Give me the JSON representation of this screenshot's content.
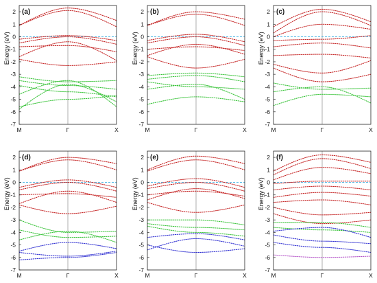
{
  "figure": {
    "colors": {
      "red": "#c62828",
      "green": "#3cc43c",
      "blue": "#3232d2",
      "purple": "#b455c8",
      "fermi": "#29a8e0",
      "gamma_line": "#9a9a9a"
    },
    "panels": [
      {
        "label": "(a)",
        "ylabel": "Energy (eV)",
        "xticks": [
          "M",
          "Γ",
          "X"
        ],
        "yticks": [
          "2",
          "1",
          "0",
          "-1",
          "-2",
          "-3",
          "-4",
          "-5",
          "-6",
          "-7"
        ],
        "chart_data": {
          "type": "line",
          "ylim": [
            -7,
            2.5
          ],
          "x_points": [
            "M",
            "Γ",
            "X"
          ],
          "fermi_level": 0,
          "series": [
            {
              "color": "red",
              "values": [
                0.9,
                2.3,
                1.3
              ]
            },
            {
              "color": "red",
              "values": [
                0.9,
                2.1,
                0.8
              ]
            },
            {
              "color": "red",
              "values": [
                -0.2,
                0.1,
                -0.3
              ]
            },
            {
              "color": "red",
              "values": [
                -0.5,
                0.0,
                -0.6
              ]
            },
            {
              "color": "red",
              "values": [
                -0.8,
                -0.7,
                -1.2
              ]
            },
            {
              "color": "red",
              "values": [
                -1.6,
                -0.4,
                -1.9
              ]
            },
            {
              "color": "red",
              "values": [
                -1.8,
                -2.3,
                -2.0
              ]
            },
            {
              "color": "green",
              "values": [
                -3.2,
                -3.6,
                -3.5
              ]
            },
            {
              "color": "green",
              "values": [
                -3.5,
                -3.9,
                -4.2
              ]
            },
            {
              "color": "green",
              "values": [
                -3.9,
                -4.4,
                -4.8
              ]
            },
            {
              "color": "green",
              "values": [
                -4.6,
                -3.5,
                -5.6
              ]
            },
            {
              "color": "green",
              "values": [
                -5.6,
                -5.0,
                -4.7
              ]
            },
            {
              "color": "green",
              "values": [
                -5.8,
                -3.8,
                -5.2
              ]
            }
          ]
        }
      },
      {
        "label": "(b)",
        "ylabel": "Energy (eV)",
        "xticks": [
          "M",
          "Γ",
          "X"
        ],
        "yticks": [
          "2",
          "1",
          "0",
          "-1",
          "-2",
          "-3",
          "-4",
          "-5",
          "-6",
          "-7"
        ],
        "chart_data": {
          "type": "line",
          "ylim": [
            -7,
            2.5
          ],
          "x_points": [
            "M",
            "Γ",
            "X"
          ],
          "fermi_level": 0,
          "series": [
            {
              "color": "red",
              "values": [
                0.9,
                2.0,
                1.4
              ]
            },
            {
              "color": "red",
              "values": [
                0.9,
                1.8,
                0.9
              ]
            },
            {
              "color": "red",
              "values": [
                -0.3,
                0.2,
                -0.4
              ]
            },
            {
              "color": "red",
              "values": [
                -0.5,
                0.0,
                -0.7
              ]
            },
            {
              "color": "red",
              "values": [
                -1.0,
                -0.8,
                -1.1
              ]
            },
            {
              "color": "red",
              "values": [
                -1.5,
                -0.6,
                -1.4
              ]
            },
            {
              "color": "red",
              "values": [
                -1.6,
                -2.5,
                -1.8
              ]
            },
            {
              "color": "green",
              "values": [
                -3.1,
                -2.9,
                -3.2
              ]
            },
            {
              "color": "green",
              "values": [
                -3.4,
                -3.1,
                -3.6
              ]
            },
            {
              "color": "green",
              "values": [
                -3.6,
                -4.0,
                -4.2
              ]
            },
            {
              "color": "green",
              "values": [
                -5.4,
                -4.8,
                -5.2
              ]
            },
            {
              "color": "green",
              "values": [
                -4.2,
                -3.8,
                -5.0
              ]
            }
          ]
        }
      },
      {
        "label": "(c)",
        "ylabel": "Energy (eV)",
        "xticks": [
          "M",
          "Γ",
          "X"
        ],
        "yticks": [
          "2",
          "1",
          "0",
          "-1",
          "-2",
          "-3",
          "-4",
          "-5",
          "-6",
          "-7"
        ],
        "chart_data": {
          "type": "line",
          "ylim": [
            -7,
            2.5
          ],
          "x_points": [
            "M",
            "Γ",
            "X"
          ],
          "fermi_level": 0,
          "series": [
            {
              "color": "red",
              "values": [
                0.8,
                2.2,
                1.2
              ]
            },
            {
              "color": "red",
              "values": [
                0.3,
                2.0,
                0.9
              ]
            },
            {
              "color": "red",
              "values": [
                0.0,
                1.0,
                0.6
              ]
            },
            {
              "color": "red",
              "values": [
                -0.3,
                -0.2,
                0.1
              ]
            },
            {
              "color": "red",
              "values": [
                -0.8,
                -0.5,
                -0.9
              ]
            },
            {
              "color": "red",
              "values": [
                -1.5,
                -1.4,
                -1.7
              ]
            },
            {
              "color": "red",
              "values": [
                -2.2,
                -2.9,
                -1.9
              ]
            },
            {
              "color": "red",
              "values": [
                -2.5,
                -3.6,
                -3.0
              ]
            },
            {
              "color": "green",
              "values": [
                -3.7,
                -4.2,
                -4.1
              ]
            },
            {
              "color": "green",
              "values": [
                -4.4,
                -4.0,
                -5.3
              ]
            },
            {
              "color": "green",
              "values": [
                -5.5,
                -4.6,
                -4.8
              ]
            }
          ]
        }
      },
      {
        "label": "(d)",
        "ylabel": "Energy (eV)",
        "xticks": [
          "M",
          "Γ",
          "X"
        ],
        "yticks": [
          "2",
          "1",
          "0",
          "-1",
          "-2",
          "-3",
          "-4",
          "-5",
          "-6",
          "-7"
        ],
        "chart_data": {
          "type": "line",
          "ylim": [
            -7,
            2.5
          ],
          "x_points": [
            "M",
            "Γ",
            "X"
          ],
          "fermi_level": 0,
          "series": [
            {
              "color": "red",
              "values": [
                0.9,
                2.0,
                1.5
              ]
            },
            {
              "color": "red",
              "values": [
                0.9,
                1.8,
                1.0
              ]
            },
            {
              "color": "red",
              "values": [
                -0.4,
                0.2,
                -0.4
              ]
            },
            {
              "color": "red",
              "values": [
                -0.6,
                0.0,
                -0.7
              ]
            },
            {
              "color": "red",
              "values": [
                -1.0,
                -0.9,
                -1.2
              ]
            },
            {
              "color": "red",
              "values": [
                -1.7,
                -0.7,
                -1.6
              ]
            },
            {
              "color": "red",
              "values": [
                -1.8,
                -2.5,
                -1.9
              ]
            },
            {
              "color": "green",
              "values": [
                -3.0,
                -4.0,
                -3.9
              ]
            },
            {
              "color": "green",
              "values": [
                -3.8,
                -4.4,
                -4.3
              ]
            },
            {
              "color": "green",
              "values": [
                -4.6,
                -3.9,
                -4.8
              ]
            },
            {
              "color": "blue",
              "values": [
                -5.5,
                -4.8,
                -5.3
              ]
            },
            {
              "color": "blue",
              "values": [
                -6.2,
                -6.0,
                -5.6
              ]
            },
            {
              "color": "blue",
              "values": [
                -5.6,
                -5.9,
                -5.5
              ]
            }
          ]
        }
      },
      {
        "label": "(e)",
        "ylabel": "Energy (eV)",
        "xticks": [
          "M",
          "Γ",
          "X"
        ],
        "yticks": [
          "2",
          "1",
          "0",
          "-1",
          "-2",
          "-3",
          "-4",
          "-5",
          "-6",
          "-7"
        ],
        "chart_data": {
          "type": "line",
          "ylim": [
            -7,
            2.5
          ],
          "x_points": [
            "M",
            "Γ",
            "X"
          ],
          "fermi_level": 0,
          "series": [
            {
              "color": "red",
              "values": [
                1.0,
                2.1,
                1.5
              ]
            },
            {
              "color": "red",
              "values": [
                0.9,
                1.8,
                1.0
              ]
            },
            {
              "color": "red",
              "values": [
                -0.3,
                0.3,
                -0.4
              ]
            },
            {
              "color": "red",
              "values": [
                -0.5,
                0.0,
                -0.7
              ]
            },
            {
              "color": "red",
              "values": [
                -1.0,
                -0.7,
                -1.1
              ]
            },
            {
              "color": "red",
              "values": [
                -1.4,
                -0.5,
                -1.3
              ]
            },
            {
              "color": "red",
              "values": [
                -1.6,
                -2.4,
                -1.8
              ]
            },
            {
              "color": "green",
              "values": [
                -3.0,
                -3.0,
                -3.4
              ]
            },
            {
              "color": "green",
              "values": [
                -3.3,
                -3.6,
                -3.8
              ]
            },
            {
              "color": "green",
              "values": [
                -3.5,
                -4.0,
                -4.3
              ]
            },
            {
              "color": "blue",
              "values": [
                -4.4,
                -4.1,
                -4.6
              ]
            },
            {
              "color": "blue",
              "values": [
                -5.4,
                -4.5,
                -5.1
              ]
            },
            {
              "color": "blue",
              "values": [
                -5.0,
                -5.6,
                -5.3
              ]
            }
          ]
        }
      },
      {
        "label": "(f)",
        "ylabel": "Energy (eV)",
        "xticks": [
          "M",
          "Γ",
          "X"
        ],
        "yticks": [
          "2",
          "1",
          "0",
          "-1",
          "-2",
          "-3",
          "-4",
          "-5",
          "-6",
          "-7"
        ],
        "chart_data": {
          "type": "line",
          "ylim": [
            -7,
            2.5
          ],
          "x_points": [
            "M",
            "Γ",
            "X"
          ],
          "fermi_level": 0,
          "series": [
            {
              "color": "red",
              "values": [
                0.9,
                2.2,
                1.6
              ]
            },
            {
              "color": "red",
              "values": [
                0.6,
                1.9,
                1.1
              ]
            },
            {
              "color": "red",
              "values": [
                0.2,
                1.2,
                0.7
              ]
            },
            {
              "color": "red",
              "values": [
                -0.1,
                0.1,
                0.1
              ]
            },
            {
              "color": "red",
              "values": [
                -0.6,
                -0.3,
                -0.6
              ]
            },
            {
              "color": "red",
              "values": [
                -1.2,
                -0.8,
                -1.1
              ]
            },
            {
              "color": "red",
              "values": [
                -1.6,
                -1.4,
                -1.8
              ]
            },
            {
              "color": "red",
              "values": [
                -2.0,
                -2.6,
                -2.4
              ]
            },
            {
              "color": "red",
              "values": [
                -2.5,
                -3.3,
                -3.0
              ]
            },
            {
              "color": "green",
              "values": [
                -3.2,
                -3.2,
                -3.6
              ]
            },
            {
              "color": "green",
              "values": [
                -3.6,
                -3.8,
                -4.0
              ]
            },
            {
              "color": "blue",
              "values": [
                -3.9,
                -3.6,
                -4.4
              ]
            },
            {
              "color": "blue",
              "values": [
                -4.2,
                -4.7,
                -4.9
              ]
            },
            {
              "color": "blue",
              "values": [
                -4.8,
                -5.2,
                -5.6
              ]
            },
            {
              "color": "purple",
              "values": [
                -5.8,
                -6.0,
                -5.9
              ]
            }
          ]
        }
      }
    ]
  }
}
